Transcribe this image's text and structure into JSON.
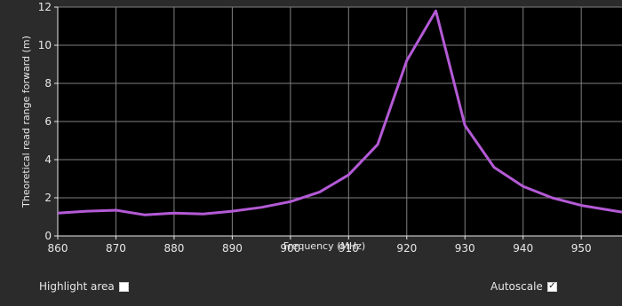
{
  "chart_data": {
    "type": "line",
    "xlabel": "Frequency (MHz)",
    "ylabel": "Theoretical read range forward (m)",
    "xlim": [
      860,
      957
    ],
    "ylim": [
      0,
      12
    ],
    "x_ticks": [
      860,
      870,
      880,
      890,
      900,
      910,
      920,
      930,
      940,
      950
    ],
    "y_ticks": [
      0,
      2,
      4,
      6,
      8,
      10,
      12
    ],
    "grid": true,
    "series": [
      {
        "color": "#b45ad6",
        "x": [
          860,
          865,
          870,
          875,
          880,
          885,
          890,
          895,
          900,
          905,
          910,
          915,
          920,
          925,
          930,
          935,
          940,
          945,
          950,
          955,
          957
        ],
        "y": [
          1.2,
          1.3,
          1.35,
          1.1,
          1.2,
          1.15,
          1.3,
          1.5,
          1.8,
          2.3,
          3.2,
          4.8,
          9.2,
          11.8,
          5.8,
          3.6,
          2.6,
          2.0,
          1.6,
          1.35,
          1.25
        ]
      }
    ]
  },
  "controls": {
    "highlight_label": "Highlight area",
    "highlight_checked": false,
    "autoscale_label": "Autoscale",
    "autoscale_checked": true
  },
  "colors": {
    "plot_bg": "#000000",
    "panel_bg": "#2b2b2b",
    "grid": "#808080",
    "series": "#b45ad6",
    "text": "#e8e8e8"
  }
}
